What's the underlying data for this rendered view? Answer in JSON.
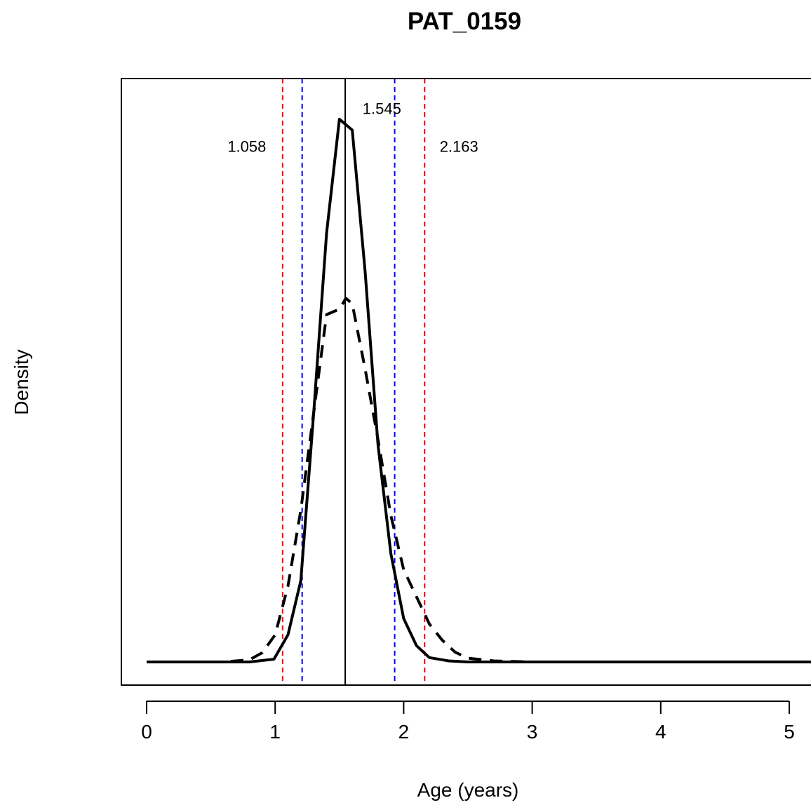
{
  "chart_data": {
    "type": "line",
    "title": "PAT_0159",
    "xlabel": "Age (years)",
    "ylabel": "Density",
    "xlim": [
      -0.2,
      5.2
    ],
    "ylim": [
      0,
      1.05
    ],
    "x_ticks": [
      0,
      1,
      2,
      3,
      4,
      5
    ],
    "y_ticks_shown": false,
    "grid": false,
    "legend": "none",
    "series": [
      {
        "style": "solid",
        "color": "#000000",
        "x": [
          0,
          0.5,
          0.8,
          0.99,
          1.1,
          1.2,
          1.3,
          1.4,
          1.5,
          1.6,
          1.7,
          1.8,
          1.9,
          2.0,
          2.1,
          2.2,
          2.35,
          2.5,
          3,
          4,
          5.2
        ],
        "y": [
          0,
          0,
          0,
          0.005,
          0.05,
          0.15,
          0.46,
          0.79,
          1.0,
          0.98,
          0.72,
          0.4,
          0.2,
          0.08,
          0.03,
          0.008,
          0.002,
          0,
          0,
          0,
          0
        ]
      },
      {
        "style": "dashed",
        "color": "#000000",
        "x": [
          0,
          0.6,
          0.8,
          0.9,
          1.0,
          1.1,
          1.2,
          1.3,
          1.4,
          1.5,
          1.55,
          1.6,
          1.7,
          1.8,
          1.9,
          2.0,
          2.1,
          2.2,
          2.3,
          2.4,
          2.5,
          2.7,
          3,
          4,
          5.2
        ],
        "y": [
          0,
          0,
          0.004,
          0.017,
          0.05,
          0.14,
          0.28,
          0.46,
          0.64,
          0.65,
          0.67,
          0.66,
          0.54,
          0.41,
          0.27,
          0.17,
          0.12,
          0.07,
          0.04,
          0.018,
          0.007,
          0.002,
          0,
          0,
          0
        ]
      }
    ],
    "vlines": [
      {
        "x": 1.058,
        "color": "#ff0000",
        "style": "dashed"
      },
      {
        "x": 1.21,
        "color": "#0000ff",
        "style": "dashed"
      },
      {
        "x": 1.545,
        "color": "#000000",
        "style": "solid"
      },
      {
        "x": 1.93,
        "color": "#0000ff",
        "style": "dashed"
      },
      {
        "x": 2.163,
        "color": "#ff0000",
        "style": "dashed"
      }
    ],
    "annotations": [
      {
        "text": "1.058",
        "x": 0.93,
        "y": 0.94,
        "anchor": "end"
      },
      {
        "text": "1.545",
        "x": 1.68,
        "y": 1.01,
        "anchor": "start"
      },
      {
        "text": "2.163",
        "x": 2.28,
        "y": 0.94,
        "anchor": "start"
      }
    ]
  }
}
